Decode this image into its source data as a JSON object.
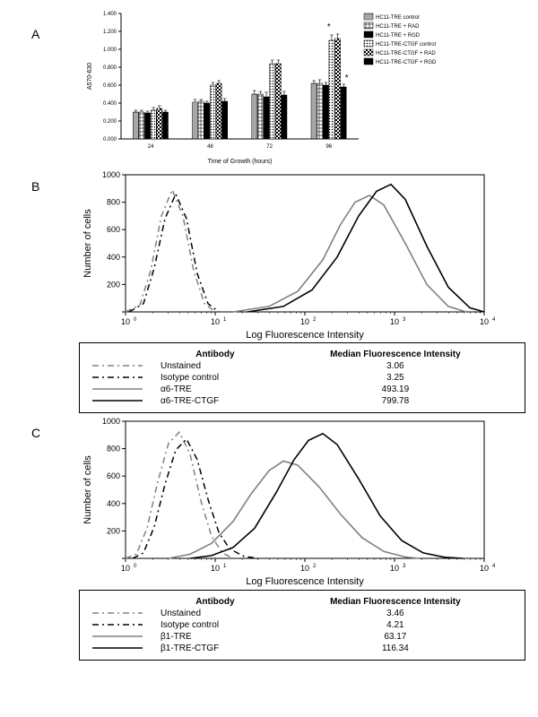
{
  "panelA": {
    "label": "A",
    "ylabel": "A570-630",
    "xlabel": "Time of Growth (hours)",
    "label_fontsize": 7,
    "tick_fontsize": 6,
    "legend_fontsize": 6,
    "ylim": [
      0,
      1.4
    ],
    "ytick_step": 0.2,
    "yticks": [
      "0.000",
      "0.200",
      "0.400",
      "0.600",
      "0.800",
      "1.000",
      "1.200",
      "1.400"
    ],
    "categories": [
      "24",
      "48",
      "72",
      "96"
    ],
    "groups": [
      {
        "name": "HC11-TRE control",
        "fill": "#ffffff",
        "pattern": "hstripes",
        "values": [
          0.3,
          0.41,
          0.5,
          0.62
        ],
        "err": [
          0.02,
          0.03,
          0.04,
          0.03
        ]
      },
      {
        "name": "HC11-TRE + RAD",
        "fill": "#ffffff",
        "pattern": "grid",
        "values": [
          0.3,
          0.42,
          0.5,
          0.62
        ],
        "err": [
          0.02,
          0.02,
          0.03,
          0.04
        ]
      },
      {
        "name": "HC11-TRE + RGD",
        "fill": "#000000",
        "pattern": "solid",
        "values": [
          0.29,
          0.4,
          0.47,
          0.6
        ],
        "err": [
          0.02,
          0.02,
          0.05,
          0.03
        ]
      },
      {
        "name": "HC11-TRE-CTGF control",
        "fill": "#ffffff",
        "pattern": "dots",
        "values": [
          0.32,
          0.6,
          0.84,
          1.1
        ],
        "err": [
          0.03,
          0.03,
          0.04,
          0.06
        ]
      },
      {
        "name": "HC11-TRE-CTGF + RAD",
        "fill": "#ffffff",
        "pattern": "checker",
        "values": [
          0.34,
          0.62,
          0.84,
          1.12
        ],
        "err": [
          0.03,
          0.03,
          0.04,
          0.05
        ]
      },
      {
        "name": "HC11-TRE-CTGF + RGD",
        "fill": "#000000",
        "pattern": "solid",
        "values": [
          0.3,
          0.42,
          0.49,
          0.58
        ],
        "err": [
          0.02,
          0.03,
          0.04,
          0.03
        ]
      }
    ],
    "annotations": [
      {
        "text": "*",
        "x_cat": 3,
        "y": 1.2,
        "xoff": 0
      },
      {
        "text": "*",
        "x_cat": 3,
        "y": 0.63,
        "xoff": 30
      }
    ],
    "bar_width": 0.12,
    "group_gap": 0.28,
    "border_color": "#000000",
    "background_color": "#ffffff"
  },
  "panelB": {
    "label": "B",
    "ylabel": "Number of cells",
    "xlabel": "Log Fluorescence Intensity",
    "label_fontsize": 11,
    "tick_fontsize": 9,
    "ylim": [
      0,
      1000
    ],
    "yticks": [
      0,
      200,
      400,
      600,
      800,
      1000
    ],
    "xticks": [
      "10",
      "0",
      "10",
      "1",
      "10",
      "2",
      "10",
      "3",
      "10",
      "4"
    ],
    "curves": [
      {
        "name": "Unstained",
        "color": "#808080",
        "dash": "7 4 2 4",
        "width": 1.5,
        "points": [
          [
            0,
            0
          ],
          [
            0.04,
            50
          ],
          [
            0.07,
            300
          ],
          [
            0.1,
            700
          ],
          [
            0.13,
            890
          ],
          [
            0.16,
            700
          ],
          [
            0.19,
            300
          ],
          [
            0.22,
            60
          ],
          [
            0.25,
            0
          ]
        ]
      },
      {
        "name": "Isotype control",
        "color": "#000000",
        "dash": "7 4 2 4",
        "width": 1.5,
        "points": [
          [
            0.01,
            0
          ],
          [
            0.05,
            60
          ],
          [
            0.08,
            320
          ],
          [
            0.11,
            680
          ],
          [
            0.14,
            860
          ],
          [
            0.17,
            680
          ],
          [
            0.2,
            280
          ],
          [
            0.23,
            60
          ],
          [
            0.26,
            0
          ]
        ]
      },
      {
        "name": "α6-TRE",
        "color": "#808080",
        "dash": "",
        "width": 1.6,
        "points": [
          [
            0.3,
            0
          ],
          [
            0.4,
            40
          ],
          [
            0.48,
            150
          ],
          [
            0.55,
            380
          ],
          [
            0.6,
            640
          ],
          [
            0.64,
            800
          ],
          [
            0.68,
            850
          ],
          [
            0.72,
            780
          ],
          [
            0.78,
            500
          ],
          [
            0.84,
            200
          ],
          [
            0.9,
            40
          ],
          [
            0.95,
            0
          ]
        ]
      },
      {
        "name": "α6-TRE-CTGF",
        "color": "#000000",
        "dash": "",
        "width": 1.6,
        "points": [
          [
            0.34,
            0
          ],
          [
            0.44,
            40
          ],
          [
            0.52,
            160
          ],
          [
            0.59,
            400
          ],
          [
            0.65,
            700
          ],
          [
            0.7,
            880
          ],
          [
            0.74,
            930
          ],
          [
            0.78,
            820
          ],
          [
            0.84,
            480
          ],
          [
            0.9,
            180
          ],
          [
            0.96,
            30
          ],
          [
            1.0,
            0
          ]
        ]
      }
    ],
    "legend": {
      "header": [
        "Antibody",
        "Median Fluorescence Intensity"
      ],
      "rows": [
        {
          "swatch": {
            "color": "#808080",
            "dash": "7 4 2 4"
          },
          "ab": "Unstained",
          "mfi": "3.06"
        },
        {
          "swatch": {
            "color": "#000000",
            "dash": "7 4 2 4"
          },
          "ab": "Isotype control",
          "mfi": "3.25"
        },
        {
          "swatch": {
            "color": "#808080",
            "dash": ""
          },
          "ab": "α6-TRE",
          "mfi": "493.19"
        },
        {
          "swatch": {
            "color": "#000000",
            "dash": ""
          },
          "ab": "α6-TRE-CTGF",
          "mfi": "799.78"
        }
      ]
    },
    "background_color": "#ffffff",
    "border_color": "#000000"
  },
  "panelC": {
    "label": "C",
    "ylabel": "Number of cells",
    "xlabel": "Log Fluorescence Intensity",
    "label_fontsize": 11,
    "tick_fontsize": 9,
    "ylim": [
      0,
      1000
    ],
    "yticks": [
      0,
      200,
      400,
      600,
      800,
      1000
    ],
    "curves": [
      {
        "name": "Unstained",
        "color": "#808080",
        "dash": "7 4 2 4",
        "width": 1.5,
        "points": [
          [
            0,
            0
          ],
          [
            0.03,
            30
          ],
          [
            0.06,
            220
          ],
          [
            0.09,
            560
          ],
          [
            0.12,
            840
          ],
          [
            0.15,
            920
          ],
          [
            0.18,
            760
          ],
          [
            0.21,
            420
          ],
          [
            0.24,
            160
          ],
          [
            0.27,
            40
          ],
          [
            0.3,
            0
          ]
        ]
      },
      {
        "name": "Isotype control",
        "color": "#000000",
        "dash": "7 4 2 4",
        "width": 1.5,
        "points": [
          [
            0.02,
            0
          ],
          [
            0.05,
            40
          ],
          [
            0.08,
            230
          ],
          [
            0.11,
            540
          ],
          [
            0.14,
            790
          ],
          [
            0.17,
            870
          ],
          [
            0.2,
            720
          ],
          [
            0.23,
            430
          ],
          [
            0.26,
            190
          ],
          [
            0.29,
            70
          ],
          [
            0.33,
            15
          ],
          [
            0.37,
            0
          ]
        ]
      },
      {
        "name": "β1-TRE",
        "color": "#808080",
        "dash": "",
        "width": 1.6,
        "points": [
          [
            0.12,
            0
          ],
          [
            0.18,
            30
          ],
          [
            0.24,
            110
          ],
          [
            0.3,
            270
          ],
          [
            0.35,
            470
          ],
          [
            0.4,
            640
          ],
          [
            0.44,
            710
          ],
          [
            0.48,
            680
          ],
          [
            0.54,
            520
          ],
          [
            0.6,
            320
          ],
          [
            0.66,
            150
          ],
          [
            0.72,
            50
          ],
          [
            0.78,
            10
          ],
          [
            0.82,
            0
          ]
        ]
      },
      {
        "name": "β1-TRE-CTGF",
        "color": "#000000",
        "dash": "",
        "width": 1.6,
        "points": [
          [
            0.18,
            0
          ],
          [
            0.24,
            20
          ],
          [
            0.3,
            80
          ],
          [
            0.36,
            220
          ],
          [
            0.42,
            480
          ],
          [
            0.47,
            720
          ],
          [
            0.51,
            860
          ],
          [
            0.55,
            910
          ],
          [
            0.59,
            830
          ],
          [
            0.65,
            580
          ],
          [
            0.71,
            310
          ],
          [
            0.77,
            130
          ],
          [
            0.83,
            40
          ],
          [
            0.89,
            8
          ],
          [
            0.94,
            0
          ]
        ]
      }
    ],
    "legend": {
      "header": [
        "Antibody",
        "Median Fluorescence Intensity"
      ],
      "rows": [
        {
          "swatch": {
            "color": "#808080",
            "dash": "7 4 2 4"
          },
          "ab": "Unstained",
          "mfi": "3.46"
        },
        {
          "swatch": {
            "color": "#000000",
            "dash": "7 4 2 4"
          },
          "ab": "Isotype control",
          "mfi": "4.21"
        },
        {
          "swatch": {
            "color": "#808080",
            "dash": ""
          },
          "ab": "β1-TRE",
          "mfi": "63.17"
        },
        {
          "swatch": {
            "color": "#000000",
            "dash": ""
          },
          "ab": "β1-TRE-CTGF",
          "mfi": "116.34"
        }
      ]
    },
    "background_color": "#ffffff",
    "border_color": "#000000"
  }
}
